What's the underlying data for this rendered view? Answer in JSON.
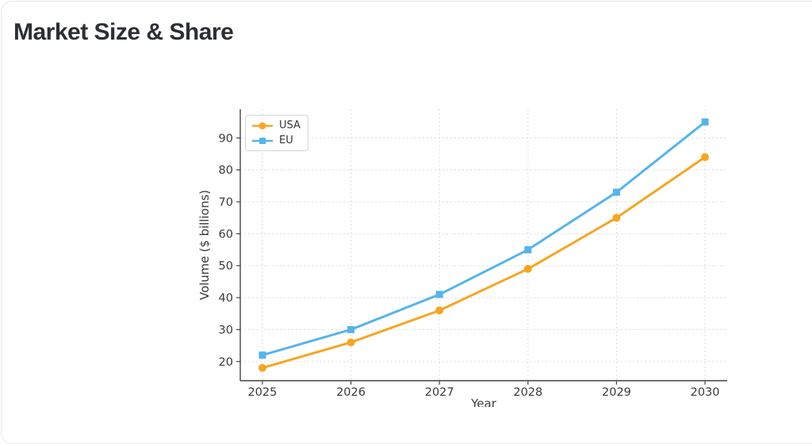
{
  "page": {
    "title": "Market Size & Share"
  },
  "chart_data": {
    "type": "line",
    "x": [
      2025,
      2026,
      2027,
      2028,
      2029,
      2030
    ],
    "series": [
      {
        "name": "USA",
        "values": [
          18,
          26,
          36,
          49,
          65,
          84
        ],
        "color": "#F5A623",
        "marker": "circle"
      },
      {
        "name": "EU",
        "values": [
          22,
          30,
          41,
          55,
          73,
          95
        ],
        "color": "#56B4E9",
        "marker": "square"
      }
    ],
    "xlabel": "Year",
    "ylabel": "Volume ($ billions)",
    "yticks": [
      20,
      30,
      40,
      50,
      60,
      70,
      80,
      90
    ],
    "xlim": [
      2024.75,
      2030.25
    ],
    "ylim": [
      14,
      99
    ],
    "grid": true,
    "legend_position": "upper-left"
  }
}
